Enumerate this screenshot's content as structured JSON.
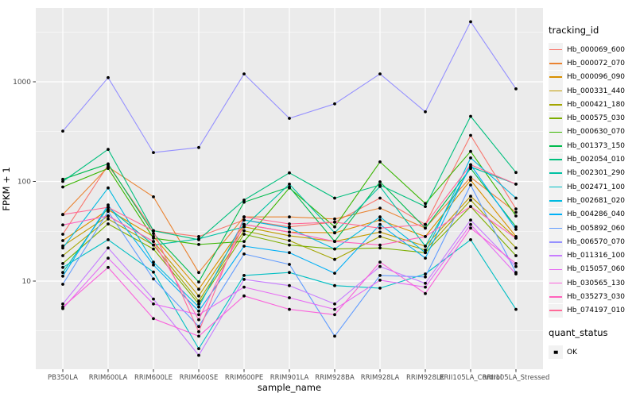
{
  "chart_data": {
    "type": "line",
    "title": "",
    "xlabel": "sample_name",
    "ylabel": "FPKM + 1",
    "y_scale": "log10",
    "y_ticks": [
      10,
      100,
      1000
    ],
    "y_tick_labels": [
      "10",
      "100",
      "1000"
    ],
    "ylim": [
      1.5,
      5500
    ],
    "grid": true,
    "legend_position": "right",
    "panel_bg": "#EBEBEB",
    "grid_color": "#FFFFFF",
    "tick_color": "#333333",
    "tick_label_color": "#4D4D4D",
    "point_color": "#000000",
    "legend": {
      "tracking_title": "tracking_id",
      "quant_title": "quant_status",
      "key_bg": "#F2F2F2",
      "quant_items": [
        {
          "label": "OK",
          "marker": "square",
          "color": "#000000"
        }
      ]
    },
    "x_categories": [
      "PB350LA",
      "RRIM600LA",
      "RRIM600LE",
      "RRIM600SE",
      "RRIM600PE",
      "RRIM901LA",
      "RRIM928BA",
      "RRIM928LA",
      "RRIM928LE",
      "RRII105LA_Control",
      "RRII105LA_Stressed"
    ],
    "series": [
      {
        "name": "Hb_000069_600",
        "color": "#F8766D",
        "values": [
          29.5,
          146,
          32,
          28,
          41,
          35,
          39,
          68,
          37,
          290,
          53
        ]
      },
      {
        "name": "Hb_000072_070",
        "color": "#EA8331",
        "values": [
          46.5,
          140,
          70,
          12.2,
          44,
          44,
          42,
          54,
          34,
          110,
          49
        ]
      },
      {
        "name": "Hb_000096_090",
        "color": "#D89000",
        "values": [
          25.5,
          52,
          28,
          8.3,
          37,
          31,
          30.5,
          41,
          28,
          103,
          28
        ]
      },
      {
        "name": "Hb_000331_440",
        "color": "#C09B00",
        "values": [
          22.5,
          45,
          25,
          7.1,
          35,
          28.5,
          25,
          31,
          22.4,
          71,
          27
        ]
      },
      {
        "name": "Hb_000421_180",
        "color": "#A3A500",
        "values": [
          18,
          42,
          23,
          6.3,
          32,
          25.5,
          16.5,
          28,
          20.5,
          65,
          21.5
        ]
      },
      {
        "name": "Hb_000575_030",
        "color": "#7CAE00",
        "values": [
          15,
          37.5,
          21,
          5.9,
          29.5,
          23,
          21,
          21.5,
          19.3,
          56,
          18
        ]
      },
      {
        "name": "Hb_000630_070",
        "color": "#39B600",
        "values": [
          88,
          135,
          27,
          23.3,
          25,
          86,
          35,
          157,
          60,
          200,
          45
        ]
      },
      {
        "name": "Hb_001373_150",
        "color": "#00BB4E",
        "values": [
          105,
          150,
          30,
          9.8,
          62,
          88,
          25,
          99,
          34,
          135,
          35
        ]
      },
      {
        "name": "Hb_002054_010",
        "color": "#00BF7D",
        "values": [
          100,
          210,
          32,
          26,
          65,
          122,
          68,
          92,
          56,
          450,
          123
        ]
      },
      {
        "name": "Hb_002301_290",
        "color": "#00C1A3",
        "values": [
          12.2,
          55,
          23,
          26.5,
          35,
          94,
          30.5,
          89,
          22.4,
          140,
          94
        ]
      },
      {
        "name": "Hb_002471_100",
        "color": "#00BFC4",
        "values": [
          13.7,
          26,
          12.3,
          2.1,
          11.4,
          12.2,
          9,
          8.5,
          11.8,
          26,
          5.2
        ]
      },
      {
        "name": "Hb_002681_020",
        "color": "#00BAE0",
        "values": [
          21.5,
          86,
          15.5,
          5.5,
          41,
          34,
          21,
          44,
          19.3,
          172,
          68
        ]
      },
      {
        "name": "Hb_004286_040",
        "color": "#00B0F6",
        "values": [
          11.2,
          58,
          14.5,
          5.0,
          22.4,
          19.3,
          12,
          37,
          17,
          147,
          33
        ]
      },
      {
        "name": "Hb_005892_060",
        "color": "#619CFF",
        "values": [
          9.3,
          50,
          10.5,
          3.5,
          18.7,
          14.7,
          2.8,
          11.4,
          11,
          92,
          12.2
        ]
      },
      {
        "name": "Hb_006570_070",
        "color": "#9590FF",
        "values": [
          320,
          1100,
          195,
          219,
          1200,
          430,
          600,
          1200,
          500,
          4000,
          850
        ]
      },
      {
        "name": "Hb_011316_100",
        "color": "#C77CFF",
        "values": [
          5.9,
          21.5,
          6.6,
          1.8,
          10.4,
          9,
          5.9,
          14,
          9.5,
          41,
          14
        ]
      },
      {
        "name": "Hb_015057_060",
        "color": "#E76BF3",
        "values": [
          5.3,
          17,
          5.9,
          4.6,
          8.7,
          6.8,
          5.2,
          10.2,
          8.7,
          37,
          11.8
        ]
      },
      {
        "name": "Hb_030565_130",
        "color": "#FA62DB",
        "values": [
          5.5,
          13.7,
          4.2,
          2.8,
          7.1,
          5.2,
          4.6,
          15.5,
          7.5,
          34,
          15
        ]
      },
      {
        "name": "Hb_035273_030",
        "color": "#FF62BC",
        "values": [
          36.6,
          45,
          25,
          4.1,
          37,
          31,
          25,
          23,
          28,
          56,
          27
        ]
      },
      {
        "name": "Hb_074197_010",
        "color": "#FF6A98",
        "values": [
          46.5,
          55,
          32,
          3.1,
          44,
          37.5,
          39,
          34,
          37,
          147,
          94
        ]
      }
    ]
  }
}
